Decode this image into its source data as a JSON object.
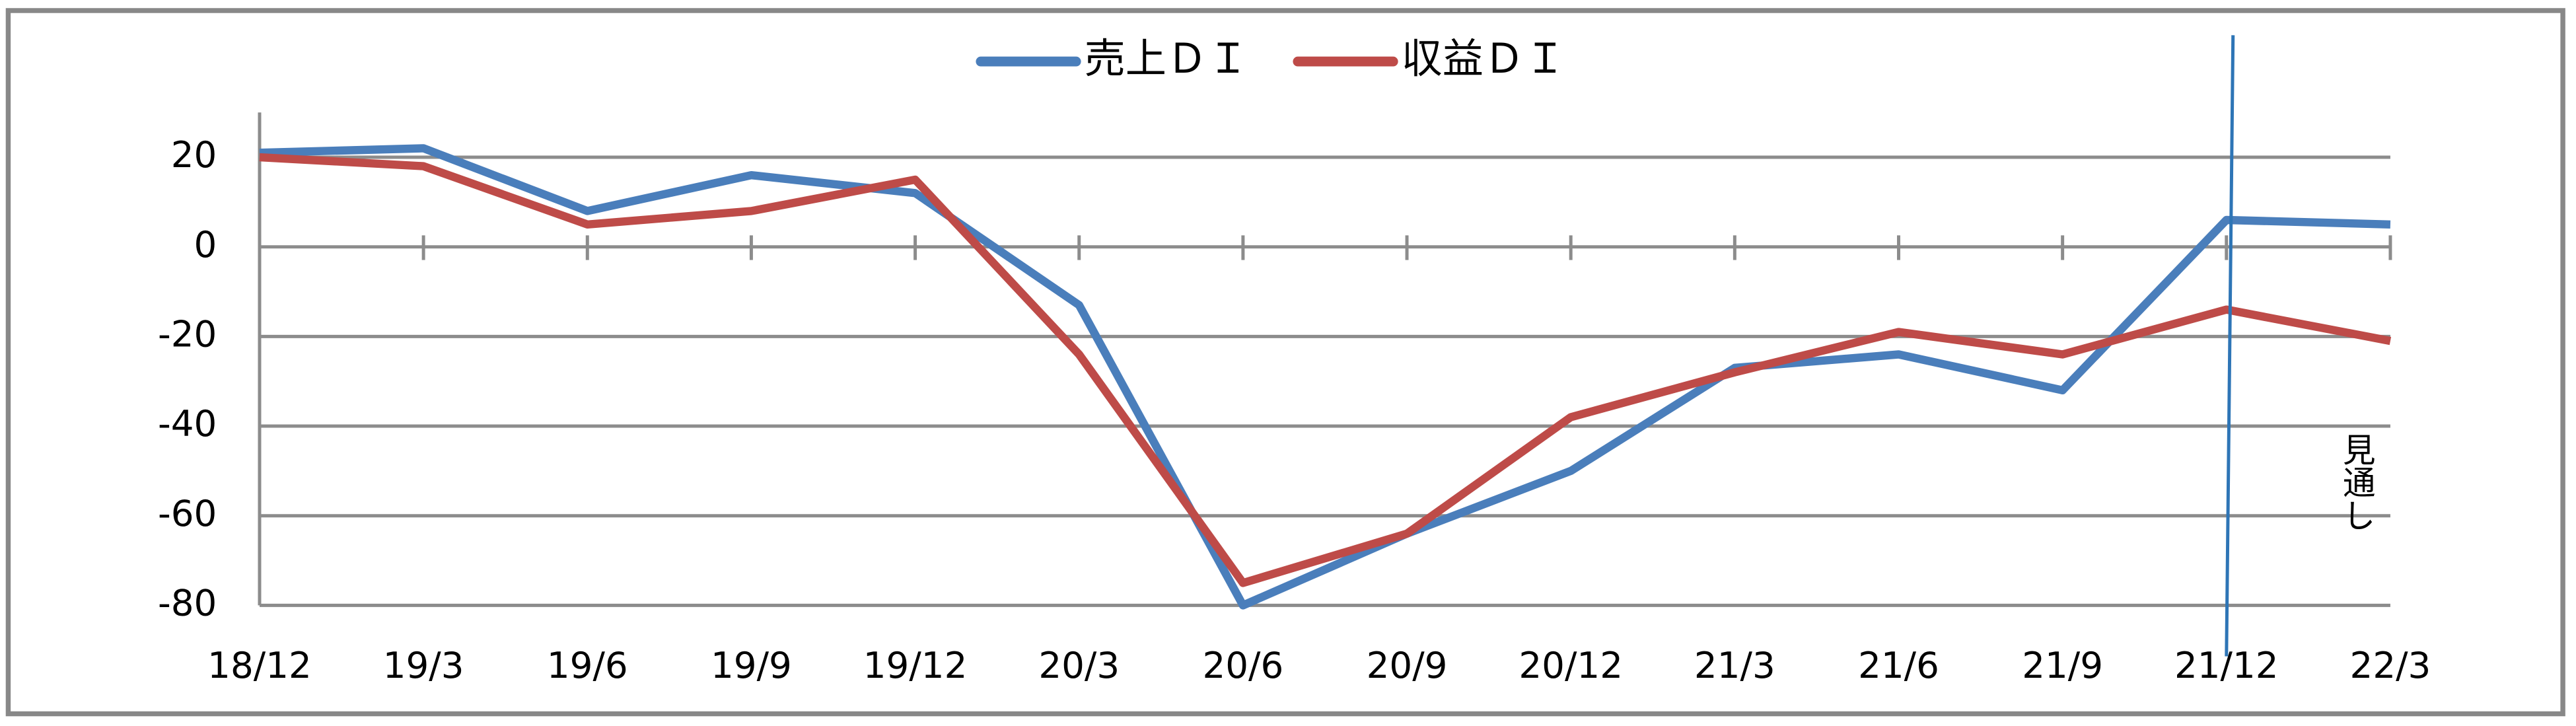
{
  "chart_data": {
    "type": "line",
    "categories": [
      "18/12",
      "19/3",
      "19/6",
      "19/9",
      "19/12",
      "20/3",
      "20/6",
      "20/9",
      "20/12",
      "21/3",
      "21/6",
      "21/9",
      "21/12",
      "22/3"
    ],
    "series": [
      {
        "name": "売上ＤＩ",
        "color": "#4a7ebb",
        "values": [
          21,
          22,
          8,
          16,
          12,
          -13,
          -80,
          -64,
          -50,
          -27,
          -24,
          -32,
          6,
          5
        ]
      },
      {
        "name": "収益ＤＩ",
        "color": "#be4b48",
        "values": [
          20,
          18,
          5,
          8,
          15,
          -24,
          -75,
          -64,
          -38,
          -28,
          -19,
          -24,
          -14,
          -21
        ]
      }
    ],
    "ylim": [
      -80,
      30
    ],
    "yticks": [
      20,
      0,
      -20,
      -40,
      -60,
      -80
    ],
    "grid": true,
    "legend": "top",
    "annotation": "見通し"
  }
}
